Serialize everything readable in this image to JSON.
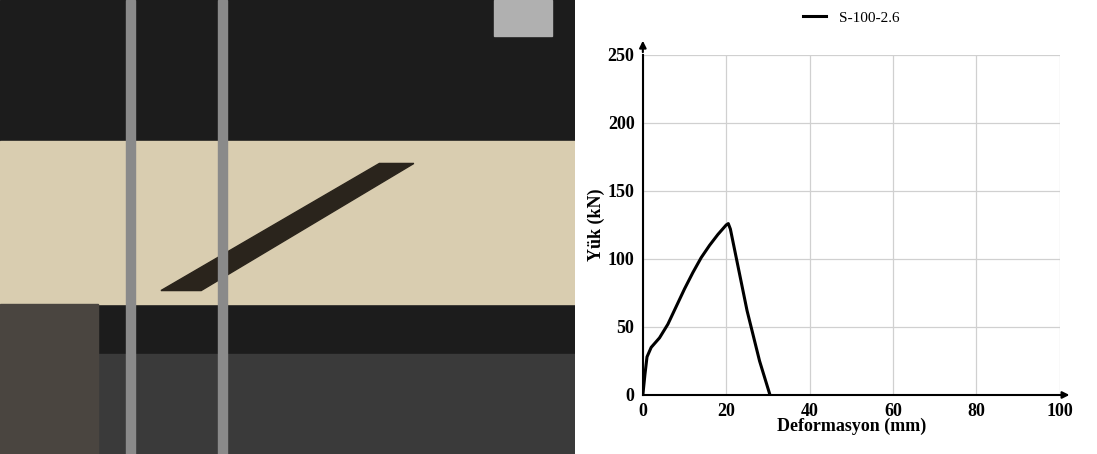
{
  "chart_data": {
    "type": "line",
    "x_label": "Deformasyon (mm)",
    "y_label": "Yük (kN)",
    "series": [
      {
        "name": "S-100-2.6",
        "color": "#000000",
        "x": [
          0,
          0.5,
          1,
          2,
          4,
          6,
          8,
          10,
          12,
          14,
          16,
          18,
          20,
          20.5,
          21,
          25,
          28,
          30.5
        ],
        "values": [
          0,
          15,
          28,
          35,
          42,
          52,
          65,
          78,
          90,
          101,
          110,
          118,
          125,
          126,
          122,
          62,
          25,
          0
        ]
      }
    ],
    "xlim": [
      0,
      100
    ],
    "xticks": [
      0,
      20,
      40,
      60,
      80,
      100
    ],
    "ylim": [
      0,
      250
    ],
    "yticks": [
      0,
      50,
      100,
      150,
      200,
      250
    ],
    "grid": true,
    "legend": "upper center"
  }
}
